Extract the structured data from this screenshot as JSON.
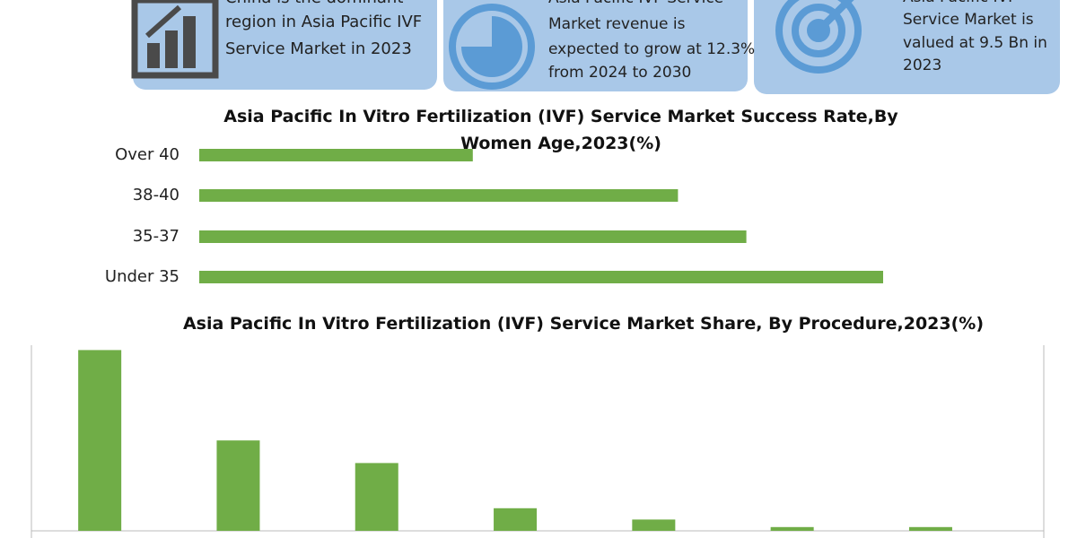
{
  "cards": [
    {
      "lines": [
        "China is the dominant",
        "region in Asia Pacific IVF",
        "Service Market in 2023"
      ]
    },
    {
      "lines": [
        "Asia Pacific IVF Service",
        "Market revenue is",
        "expected to grow at 12.3%",
        "from 2024 to 2030"
      ]
    },
    {
      "lines": [
        "Asia Pacific IVF",
        "Service Market is",
        "valued at 9.5 Bn in",
        "2023"
      ]
    }
  ],
  "chart_data": [
    {
      "type": "bar",
      "orientation": "horizontal",
      "title": "Asia Pacific In Vitro Fertilization (IVF) Service Market Success Rate,By Women Age,2023(%)",
      "categories": [
        "Over 40",
        "38-40",
        "35-37",
        "Under 35"
      ],
      "values": [
        16,
        28,
        32,
        40
      ],
      "color": "#70ad47",
      "xlim": [
        0,
        40
      ]
    },
    {
      "type": "bar",
      "orientation": "vertical",
      "title": "Asia Pacific In Vitro Fertilization (IVF) Service Market Share, By Procedure,2023(%)",
      "categories": [
        null,
        null,
        null,
        null,
        null,
        null,
        null
      ],
      "values": [
        48,
        24,
        18,
        6,
        3,
        1,
        1
      ],
      "color": "#70ad47",
      "ylim": [
        0,
        50
      ]
    }
  ]
}
